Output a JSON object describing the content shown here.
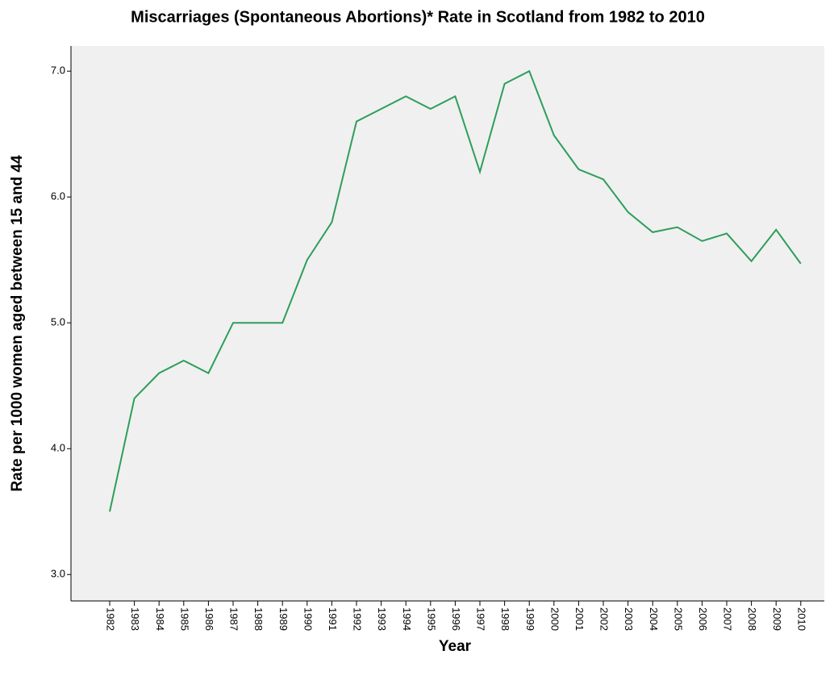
{
  "chart_data": {
    "type": "line",
    "title": "Miscarriages (Spontaneous Abortions)* Rate in Scotland from 1982 to 2010",
    "x_label": "Year",
    "y_label": "Rate per 1000 women aged between 15 and 44",
    "categories": [
      "1982",
      "1983",
      "1984",
      "1985",
      "1986",
      "1987",
      "1988",
      "1989",
      "1990",
      "1991",
      "1992",
      "1993",
      "1994",
      "1995",
      "1996",
      "1997",
      "1998",
      "1999",
      "2000",
      "2001",
      "2002",
      "2003",
      "2004",
      "2005",
      "2006",
      "2007",
      "2008",
      "2009",
      "2010"
    ],
    "values": [
      3.5,
      4.4,
      4.6,
      4.7,
      4.6,
      5.0,
      5.0,
      5.0,
      5.5,
      5.8,
      6.6,
      6.7,
      6.8,
      6.7,
      6.8,
      6.2,
      6.9,
      7.0,
      6.49,
      6.22,
      6.14,
      5.88,
      5.72,
      5.76,
      5.65,
      5.71,
      5.49,
      5.74,
      5.47
    ],
    "color": "#2e9e5b",
    "ylim": [
      2.79,
      7.2
    ],
    "yticks": [
      {
        "value": 3,
        "label": "3.0"
      },
      {
        "value": 4,
        "label": "4.0"
      },
      {
        "value": 5,
        "label": "5.0"
      },
      {
        "value": 6,
        "label": "6.0"
      },
      {
        "value": 7,
        "label": "7.0"
      }
    ],
    "grid": false
  }
}
